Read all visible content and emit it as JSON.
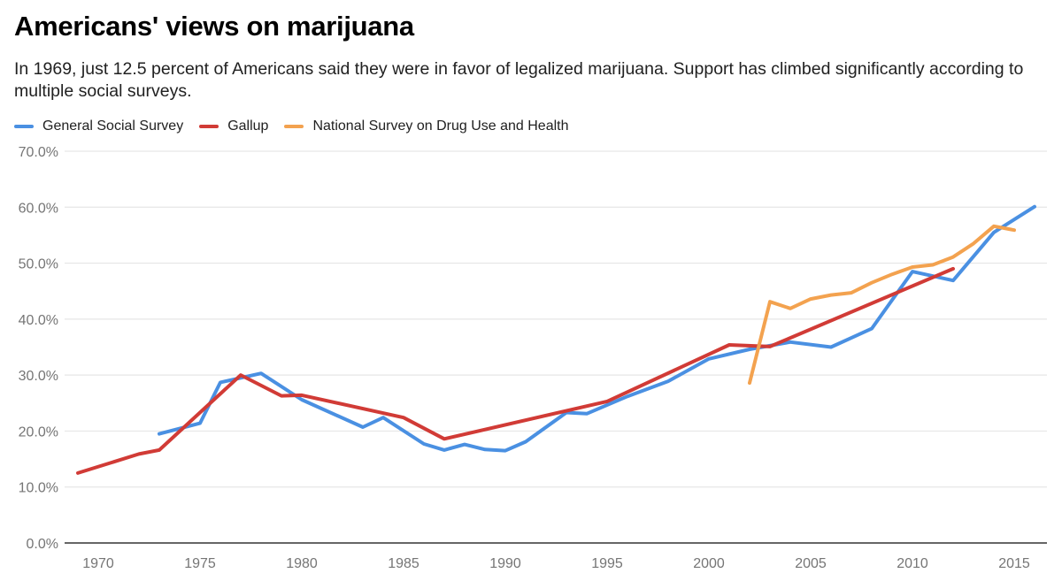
{
  "header": {
    "title": "Americans' views on marijuana",
    "subtitle": "In 1969, just 12.5 percent of Americans said they were in favor of legalized marijuana. Support has climbed significantly according to multiple social surveys."
  },
  "chart_data": {
    "type": "line",
    "title": "Americans' views on marijuana",
    "subtitle": "In 1969, just 12.5 percent of Americans said they were in favor of legalized marijuana. Support has climbed significantly according to multiple social surveys.",
    "xlabel": "",
    "ylabel": "",
    "xlim": [
      1968.3,
      2016.8
    ],
    "ylim": [
      0,
      70
    ],
    "grid": true,
    "legend_position": "top-left",
    "x_ticks": [
      1970,
      1975,
      1980,
      1985,
      1990,
      1995,
      2000,
      2005,
      2010,
      2015
    ],
    "x_tick_labels": [
      "1970",
      "1975",
      "1980",
      "1985",
      "1990",
      "1995",
      "2000",
      "2005",
      "2010",
      "2015"
    ],
    "y_ticks": [
      0,
      10,
      20,
      30,
      40,
      50,
      60,
      70
    ],
    "y_tick_labels": [
      "0.0%",
      "10.0%",
      "20.0%",
      "30.0%",
      "40.0%",
      "50.0%",
      "60.0%",
      "70.0%"
    ],
    "series": [
      {
        "name": "General Social Survey",
        "color": "#4a90e2",
        "points": [
          [
            1973,
            19.5
          ],
          [
            1975,
            21.4
          ],
          [
            1976,
            28.7
          ],
          [
            1978,
            30.3
          ],
          [
            1980,
            25.6
          ],
          [
            1983,
            20.7
          ],
          [
            1984,
            22.4
          ],
          [
            1986,
            17.7
          ],
          [
            1987,
            16.6
          ],
          [
            1988,
            17.6
          ],
          [
            1989,
            16.7
          ],
          [
            1990,
            16.5
          ],
          [
            1991,
            18.1
          ],
          [
            1993,
            23.3
          ],
          [
            1994,
            23.1
          ],
          [
            1996,
            26.2
          ],
          [
            1998,
            28.9
          ],
          [
            2000,
            32.9
          ],
          [
            2002,
            34.6
          ],
          [
            2004,
            35.9
          ],
          [
            2006,
            35.0
          ],
          [
            2008,
            38.3
          ],
          [
            2010,
            48.5
          ],
          [
            2012,
            46.9
          ],
          [
            2014,
            55.5
          ],
          [
            2016,
            60.1
          ]
        ]
      },
      {
        "name": "Gallup",
        "color": "#d13b36",
        "points": [
          [
            1969,
            12.5
          ],
          [
            1972,
            15.9
          ],
          [
            1973,
            16.6
          ],
          [
            1977,
            30.0
          ],
          [
            1979,
            26.3
          ],
          [
            1980,
            26.4
          ],
          [
            1985,
            22.4
          ],
          [
            1987,
            18.6
          ],
          [
            1995,
            25.3
          ],
          [
            2001,
            35.4
          ],
          [
            2003,
            35.1
          ],
          [
            2012,
            49.0
          ]
        ]
      },
      {
        "name": "National Survey on Drug Use and Health",
        "color": "#f3a24f",
        "points": [
          [
            2002,
            28.6
          ],
          [
            2003,
            43.1
          ],
          [
            2004,
            41.9
          ],
          [
            2005,
            43.6
          ],
          [
            2006,
            44.3
          ],
          [
            2007,
            44.7
          ],
          [
            2008,
            46.5
          ],
          [
            2009,
            48.0
          ],
          [
            2010,
            49.3
          ],
          [
            2011,
            49.7
          ],
          [
            2012,
            51.1
          ],
          [
            2013,
            53.5
          ],
          [
            2014,
            56.6
          ],
          [
            2015,
            55.9
          ]
        ]
      }
    ]
  }
}
